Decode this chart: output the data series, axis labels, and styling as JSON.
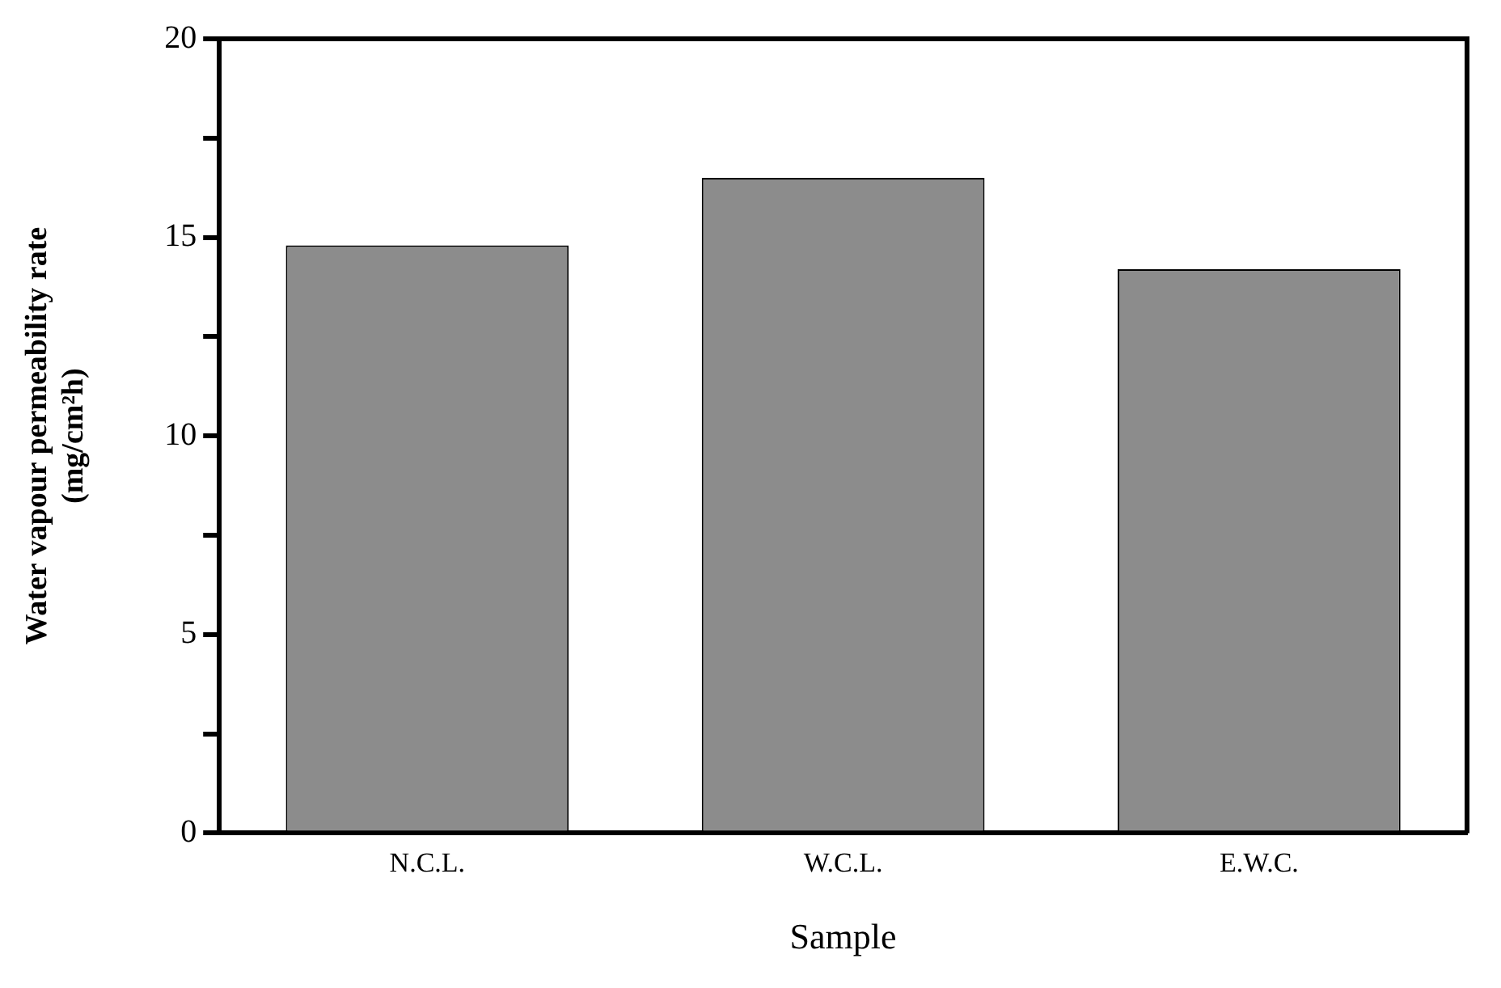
{
  "chart_data": {
    "type": "bar",
    "xlabel": "Sample",
    "ylabel": "Water vapour permeability rate\n(mg/cm²h)",
    "categories": [
      "N.C.L.",
      "W.C.L.",
      "E.W.C."
    ],
    "values": [
      14.8,
      16.5,
      14.2
    ],
    "color": "#8c8c8c",
    "ylim": [
      0,
      20
    ],
    "yticks": [
      0,
      {
        "value": 2.5,
        "label": null
      },
      5,
      {
        "value": 7.5,
        "label": null
      },
      10,
      {
        "value": 12.5,
        "label": null
      },
      15,
      {
        "value": 17.5,
        "label": null
      },
      20
    ],
    "grid": false,
    "legend": false
  }
}
